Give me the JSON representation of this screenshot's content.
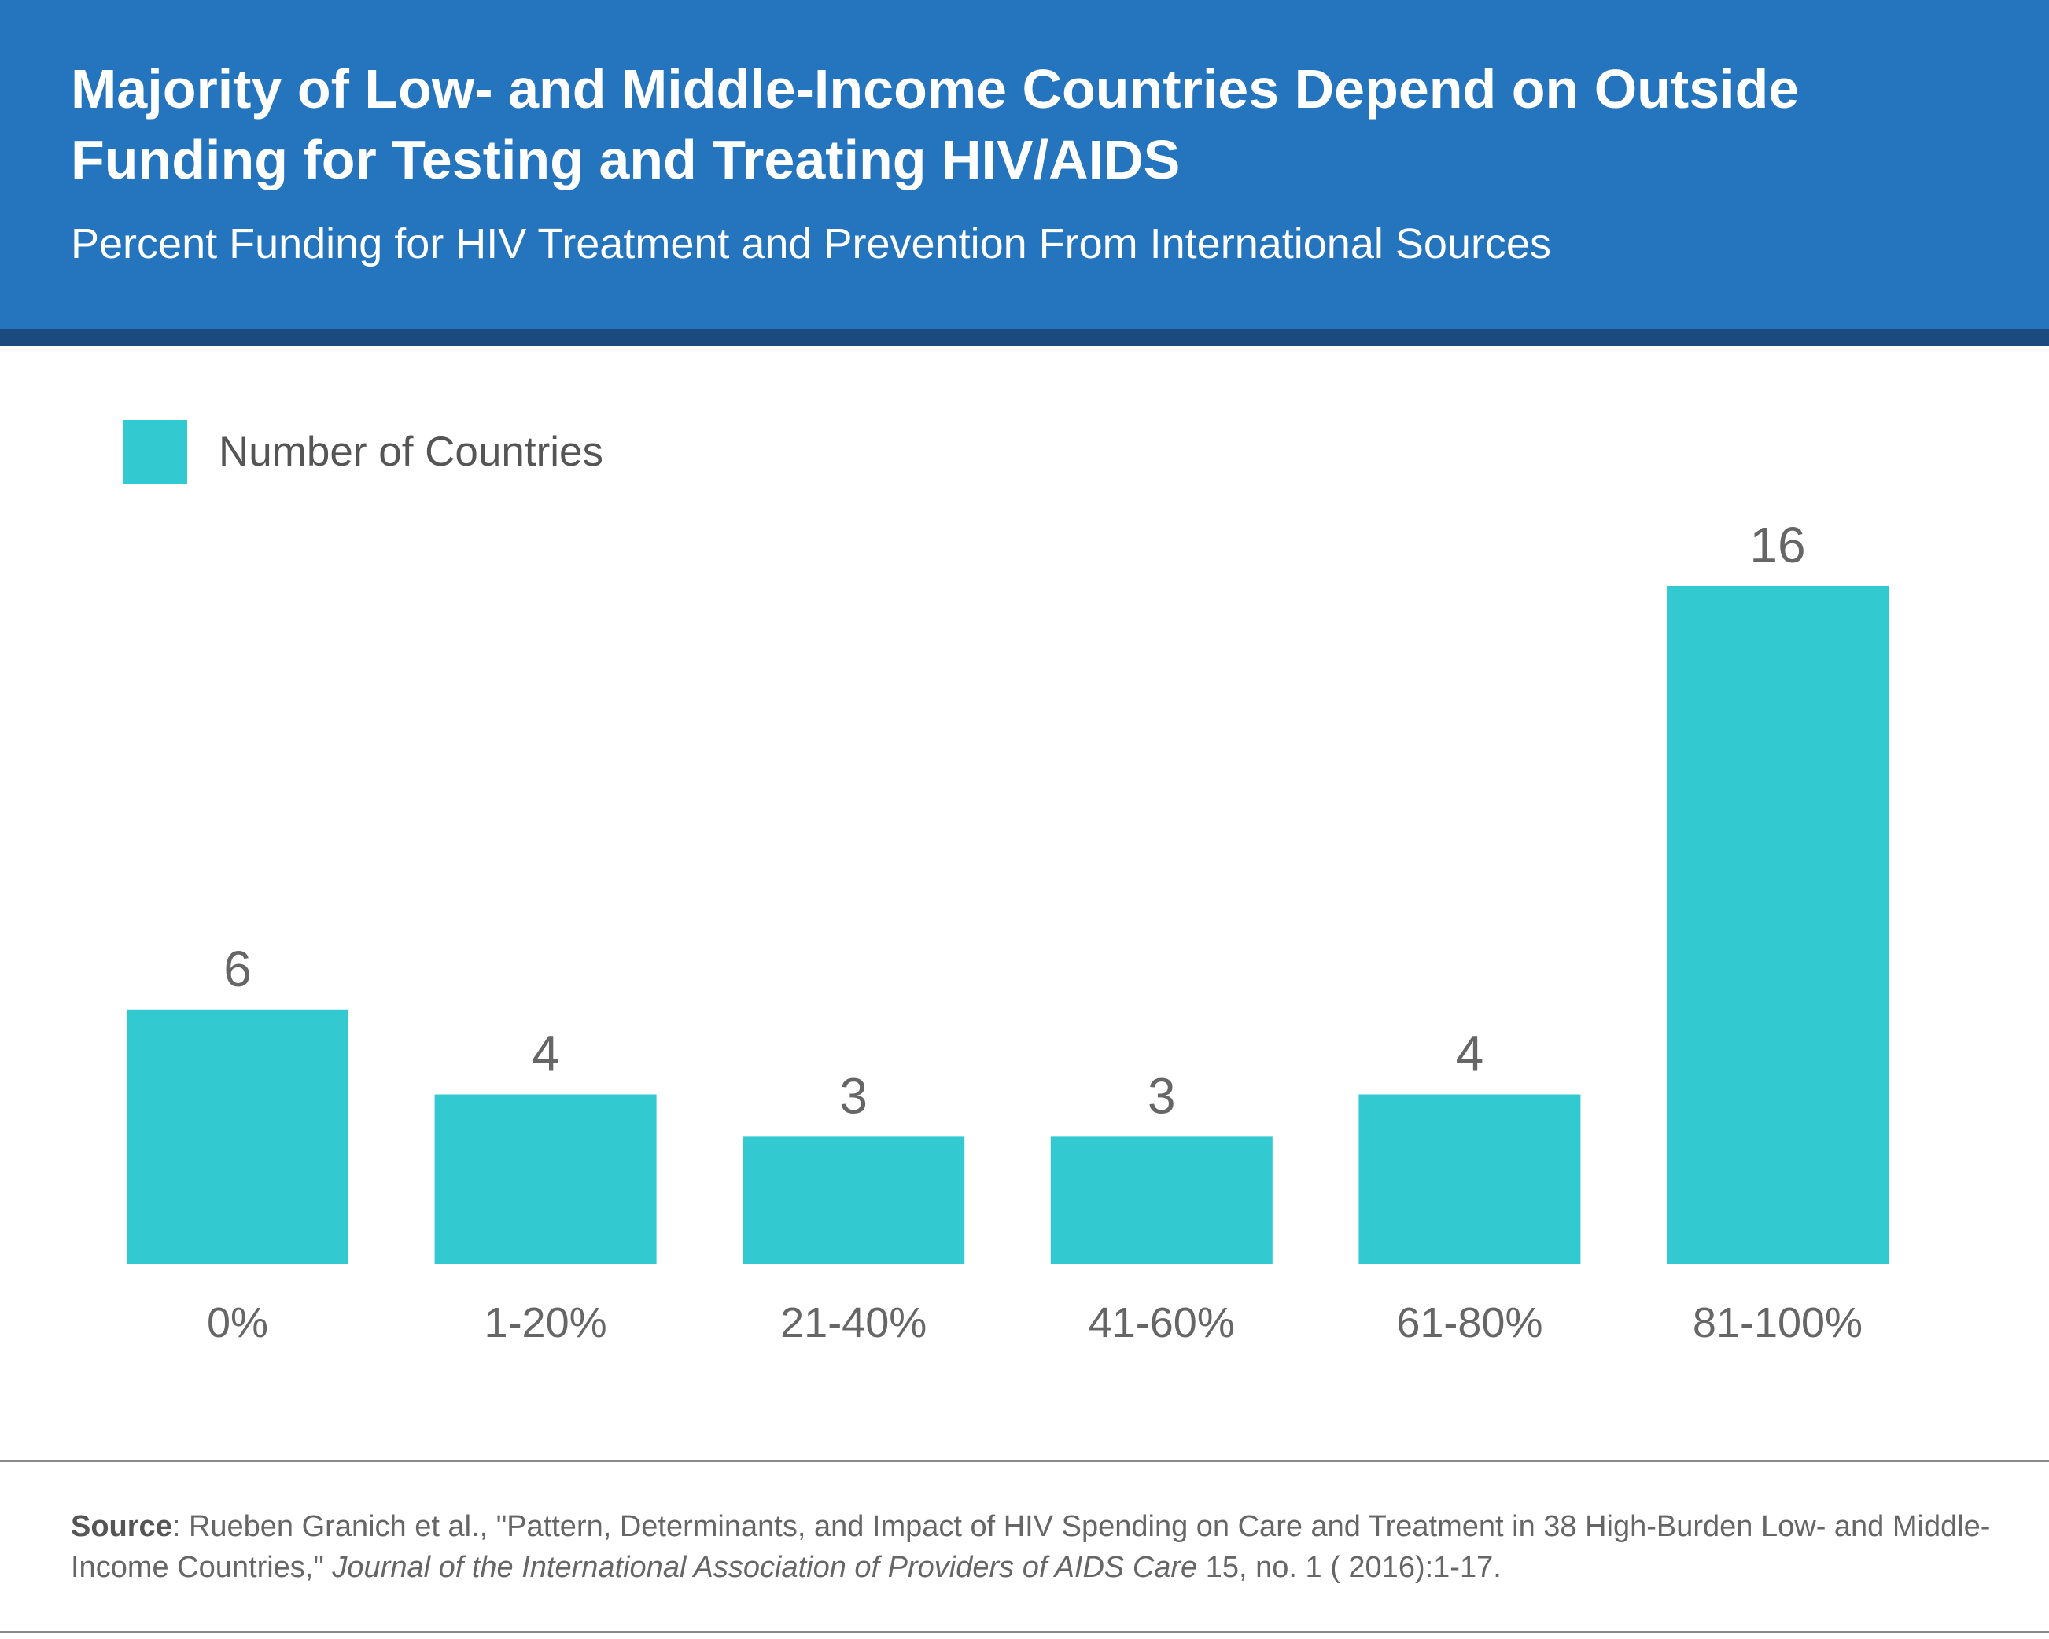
{
  "header": {
    "title": "Majority of Low- and Middle-Income Countries Depend on Outside Funding for Testing and Treating HIV/AIDS",
    "subtitle": "Percent Funding for HIV Treatment and Prevention From International Sources"
  },
  "legend": {
    "label": "Number of Countries"
  },
  "colors": {
    "header_bg": "#2574be",
    "header_stripe": "#1a4a7e",
    "bar": "#33c9d1",
    "text_gray": "#555555"
  },
  "chart_data": {
    "type": "bar",
    "title": "Majority of Low- and Middle-Income Countries Depend on Outside Funding for Testing and Treating HIV/AIDS",
    "subtitle": "Percent Funding for HIV Treatment and Prevention From International Sources",
    "categories": [
      "0%",
      "1-20%",
      "21-40%",
      "41-60%",
      "61-80%",
      "81-100%"
    ],
    "series": [
      {
        "name": "Number of Countries",
        "values": [
          6,
          4,
          3,
          3,
          4,
          16
        ]
      }
    ],
    "ylim": [
      0,
      16
    ],
    "grid": false,
    "legend_position": "top-left",
    "data_labels": true
  },
  "source": {
    "label": "Source",
    "text_before": ": Rueben Granich et al.,  \"Pattern, Determinants, and Impact of HIV Spending on Care and Treatment in 38 High-Burden Low- and Middle-Income Countries,\" ",
    "journal": "Journal of the International Association of Providers of AIDS Care",
    "text_after": " 15, no. 1 ( 2016):1-17."
  }
}
